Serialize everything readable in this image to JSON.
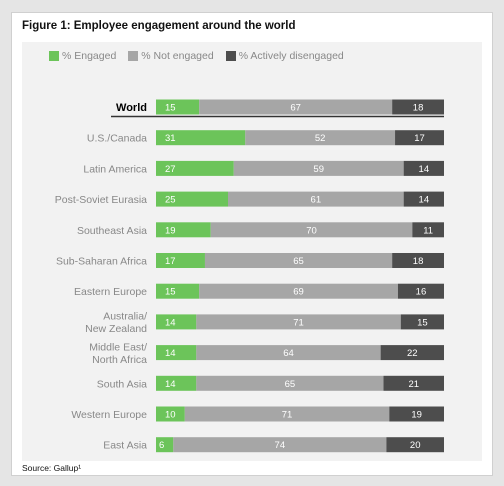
{
  "figure_title": "Figure 1: Employee engagement around the world",
  "source": "Source: Gallup¹",
  "colors": {
    "engaged": "#6cc45a",
    "not_engaged": "#a6a6a6",
    "actively_disengaged": "#4d4d4d",
    "panel": "#f2f2f2",
    "label": "#888888",
    "world_label": "#000000"
  },
  "chart_data": {
    "type": "bar",
    "orientation": "horizontal",
    "stacked": true,
    "title": "Figure 1: Employee engagement around the world",
    "legend_position": "top-left",
    "categories": [
      "World",
      "U.S./Canada",
      "Latin America",
      "Post-Soviet Eurasia",
      "Southeast Asia",
      "Sub-Saharan Africa",
      "Eastern Europe",
      "Australia/\nNew Zealand",
      "Middle East/\nNorth Africa",
      "South Asia",
      "Western Europe",
      "East Asia"
    ],
    "series": [
      {
        "name": "% Engaged",
        "values": [
          15,
          31,
          27,
          25,
          19,
          17,
          15,
          14,
          14,
          14,
          10,
          6
        ]
      },
      {
        "name": "% Not engaged",
        "values": [
          67,
          52,
          59,
          61,
          70,
          65,
          69,
          71,
          64,
          65,
          71,
          74
        ]
      },
      {
        "name": "% Actively disengaged",
        "values": [
          18,
          17,
          14,
          14,
          11,
          18,
          16,
          15,
          22,
          21,
          19,
          20
        ]
      }
    ],
    "xlim": [
      0,
      100
    ]
  }
}
